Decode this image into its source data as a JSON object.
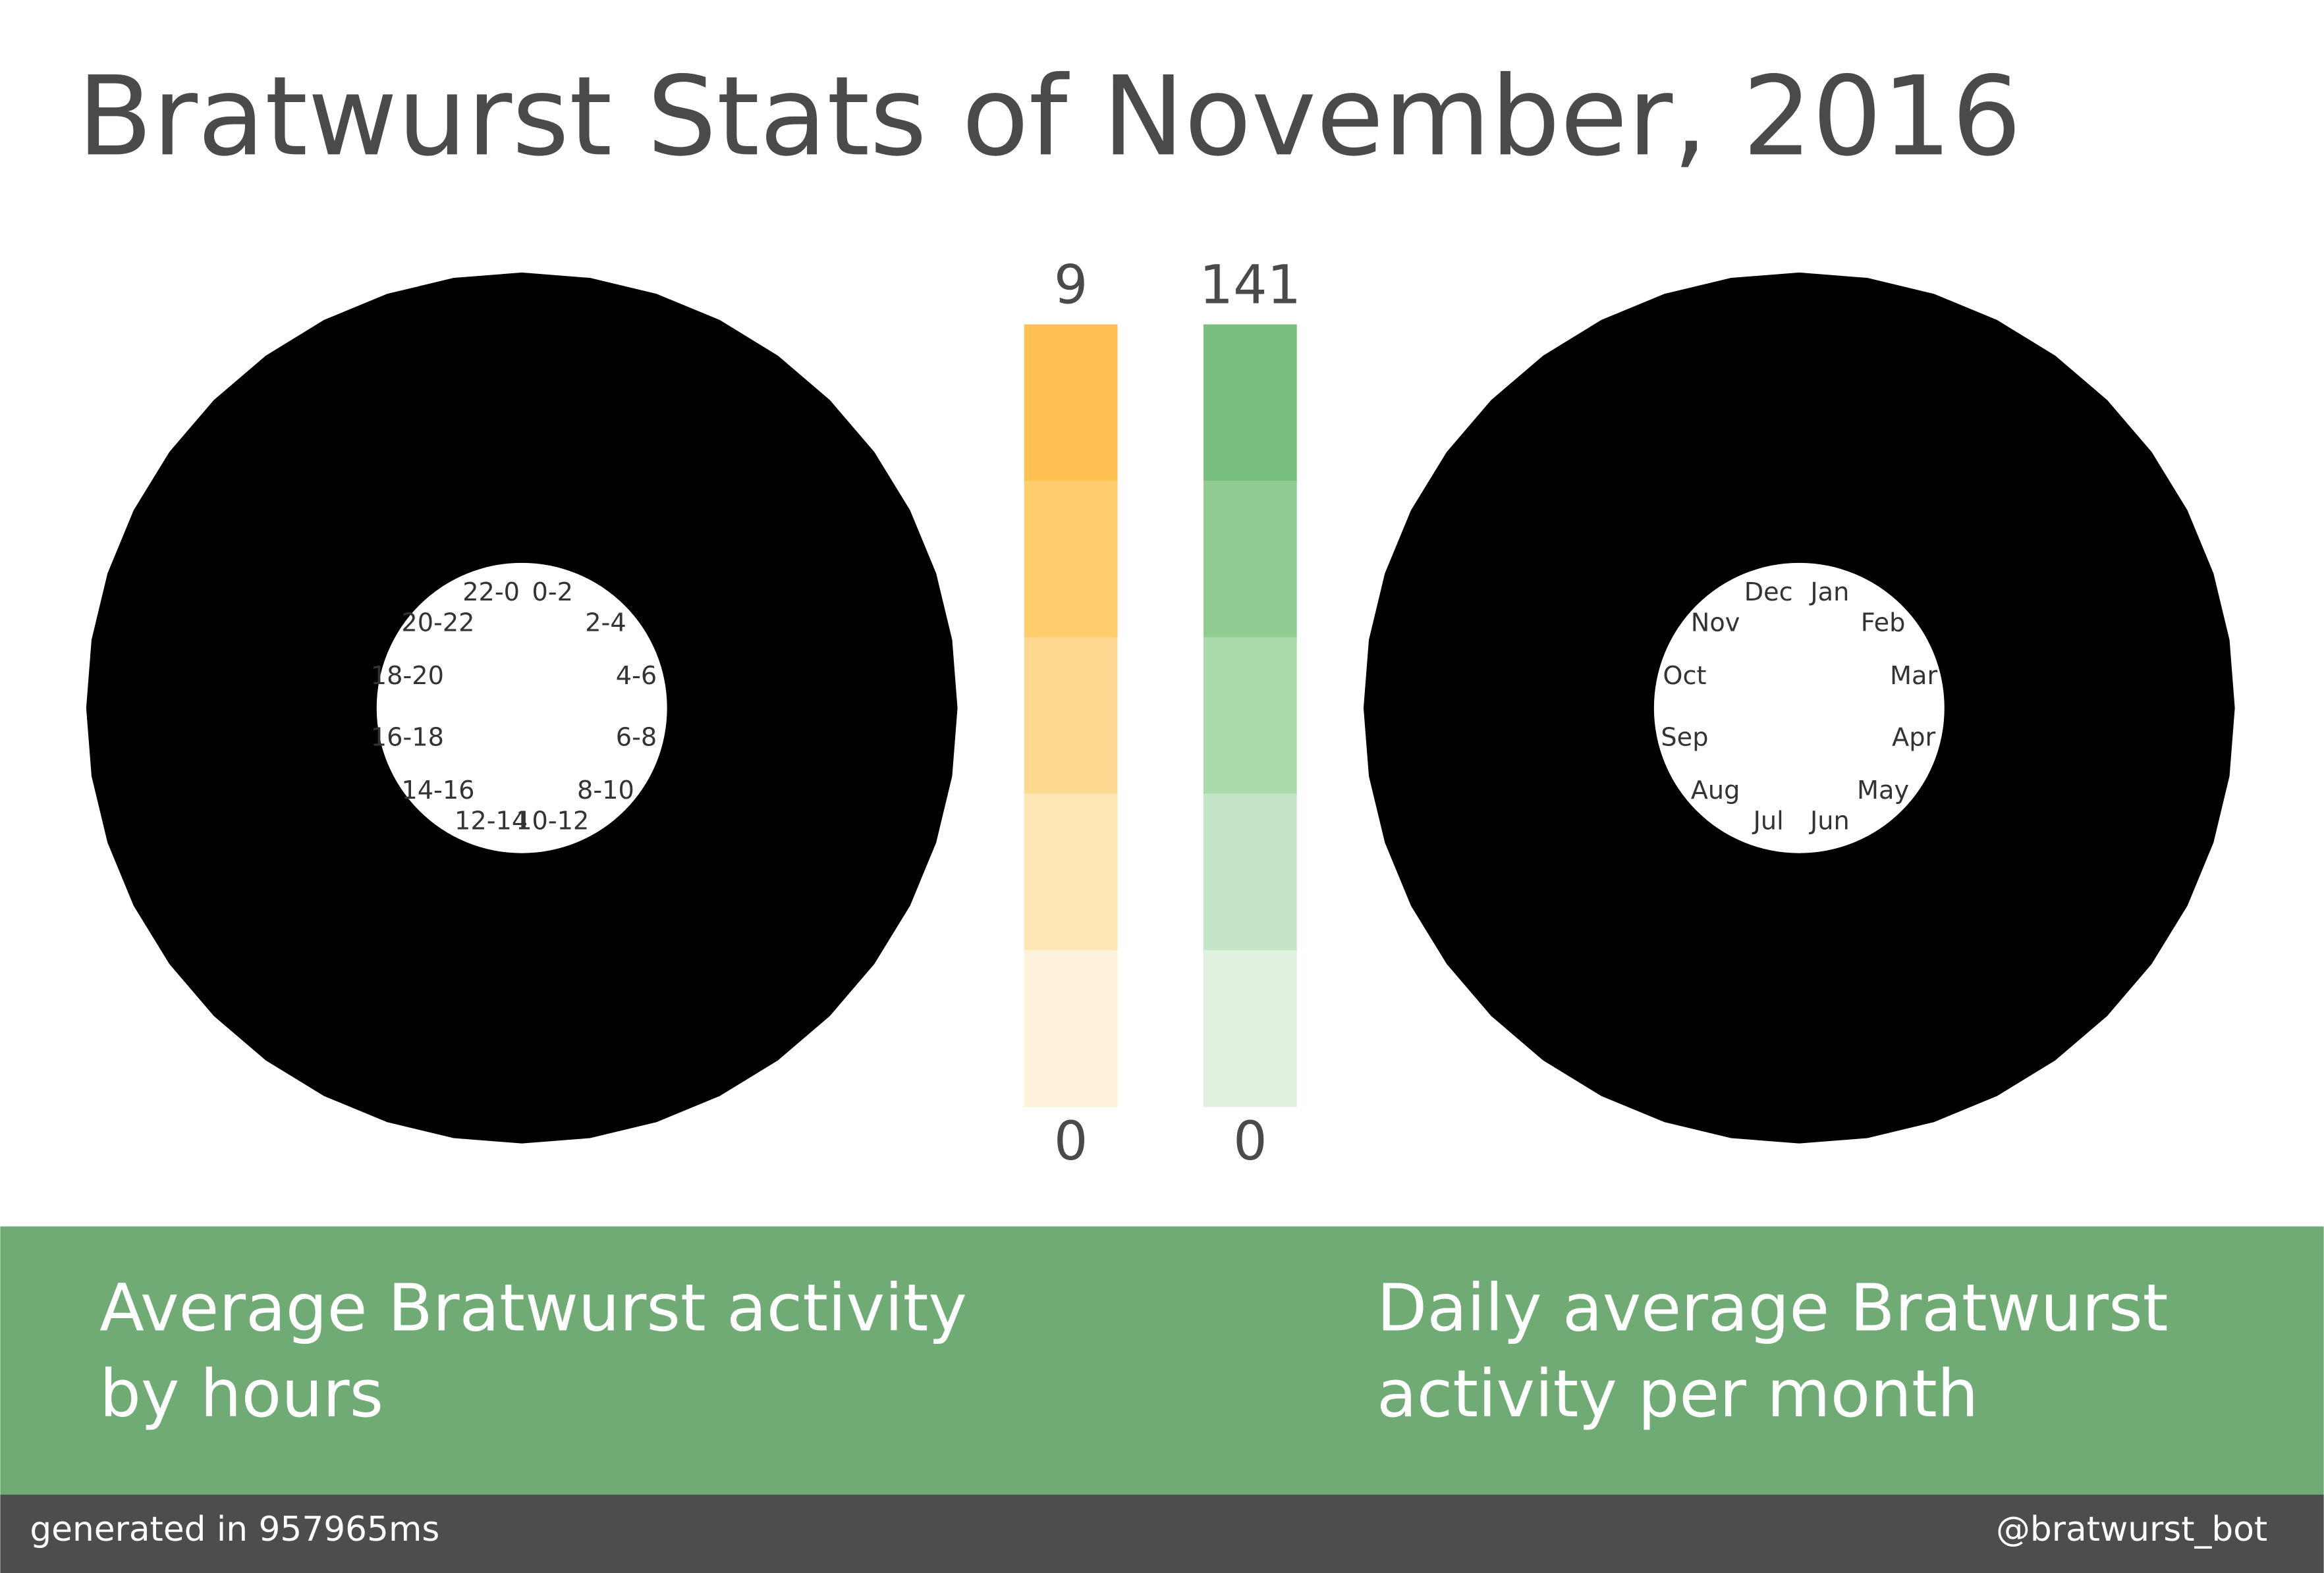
{
  "title": "Bratwurst Stats of November, 2016",
  "hours_panel": {
    "labels": [
      "0-2",
      "2-4",
      "4-6",
      "6-8",
      "8-10",
      "10-12",
      "12-14",
      "14-16",
      "16-18",
      "18-20",
      "20-22",
      "22-0"
    ],
    "caption": [
      "Average Bratwurst activity",
      "by hours"
    ]
  },
  "months_panel": {
    "labels": [
      "Jan",
      "Feb",
      "Mar",
      "Apr",
      "May",
      "Jun",
      "Jul",
      "Aug",
      "Sep",
      "Oct",
      "Nov",
      "Dec"
    ],
    "caption": [
      "Daily average Bratwurst",
      "activity per month"
    ]
  },
  "legends": [
    {
      "max": 9,
      "min": 0,
      "colors": [
        "#ffc252",
        "#ffcc6e",
        "#ffd891",
        "#fee6b5",
        "#fef2dc"
      ]
    },
    {
      "max": 141,
      "min": 0,
      "colors": [
        "#79c07e",
        "#91cd92",
        "#aad9ab",
        "#c5e6c6",
        "#e0f1e0"
      ]
    }
  ],
  "footer": {
    "left": "generated in 957965ms",
    "right": "@bratwurst_bot"
  }
}
